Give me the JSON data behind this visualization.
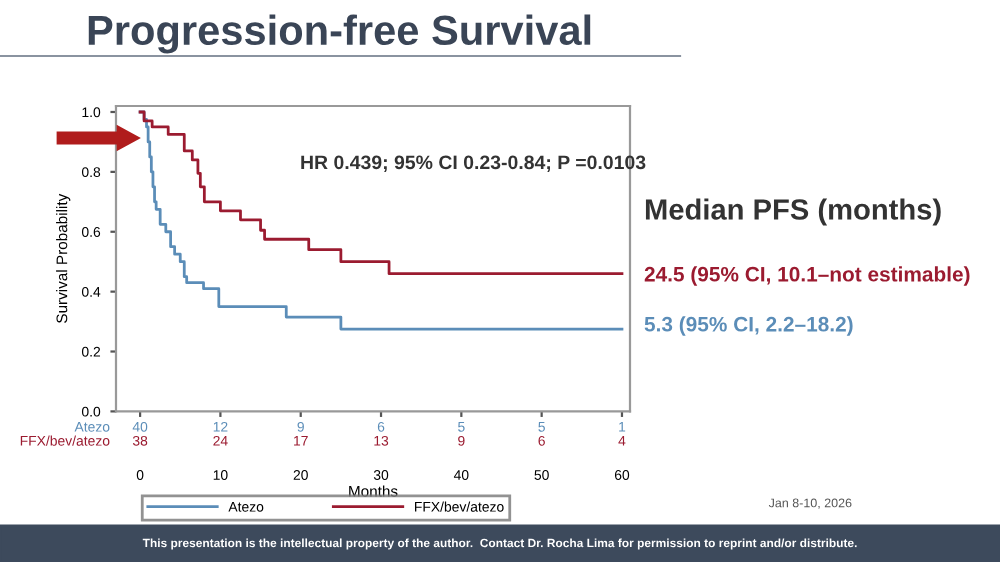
{
  "chart_data": {
    "type": "step",
    "title": "Progression-free Survival",
    "xlabel": "Months",
    "ylabel": "Survival Probability",
    "xlim": [
      -3,
      61
    ],
    "xticks": [
      0,
      10,
      20,
      30,
      40,
      50,
      60
    ],
    "ylim": [
      0,
      1.02
    ],
    "yticks": [
      {
        "value": 0,
        "label": "0.0"
      },
      0.2,
      0.4,
      0.6,
      0.8,
      {
        "value": 1,
        "label": "1.0"
      }
    ],
    "grid": false,
    "legend": "bottom",
    "series": [
      {
        "name": "Atezo",
        "color": "#5b8db8",
        "x": [
          0,
          0.5,
          0.8,
          1.0,
          1.2,
          1.4,
          1.6,
          1.8,
          2.0,
          2.5,
          3.2,
          3.8,
          4.3,
          5.0,
          5.5,
          5.8,
          7.9,
          9.8,
          18.2,
          25,
          60
        ],
        "values": [
          1.0,
          0.975,
          0.95,
          0.9,
          0.85,
          0.8,
          0.75,
          0.7,
          0.675,
          0.625,
          0.6,
          0.55,
          0.525,
          0.5,
          0.45,
          0.43,
          0.41,
          0.35,
          0.315,
          0.275,
          0.275
        ]
      },
      {
        "name": "FFX/bev/atezo",
        "color": "#9b1b30",
        "x": [
          0,
          0.5,
          1.5,
          3.5,
          5.5,
          6.5,
          7.2,
          7.5,
          8.0,
          10,
          12.5,
          15,
          15.5,
          21,
          25,
          31,
          60
        ],
        "values": [
          1.0,
          0.97,
          0.95,
          0.925,
          0.87,
          0.84,
          0.795,
          0.75,
          0.7,
          0.67,
          0.64,
          0.605,
          0.575,
          0.54,
          0.5,
          0.46,
          0.46
        ]
      }
    ],
    "annotations": [
      "HR 0.439; 95% CI 0.23-0.84; P =0.0103",
      "Median PFS (months)",
      "24.5 (95% CI, 10.1–not estimable)",
      "5.3 (95% CI, 2.2–18.2)",
      "Atezo",
      "FFX/bev/atezo",
      "Jan 8-10, 2026",
      "This presentation is the intellectual property of the author.  Contact Dr. Rocha Lima for permission to reprint and/or distribute.",
      "40",
      "12",
      "9",
      "6",
      "5",
      "5",
      "1",
      "38",
      "24",
      "17",
      "13",
      "9",
      "6",
      "4"
    ]
  }
}
